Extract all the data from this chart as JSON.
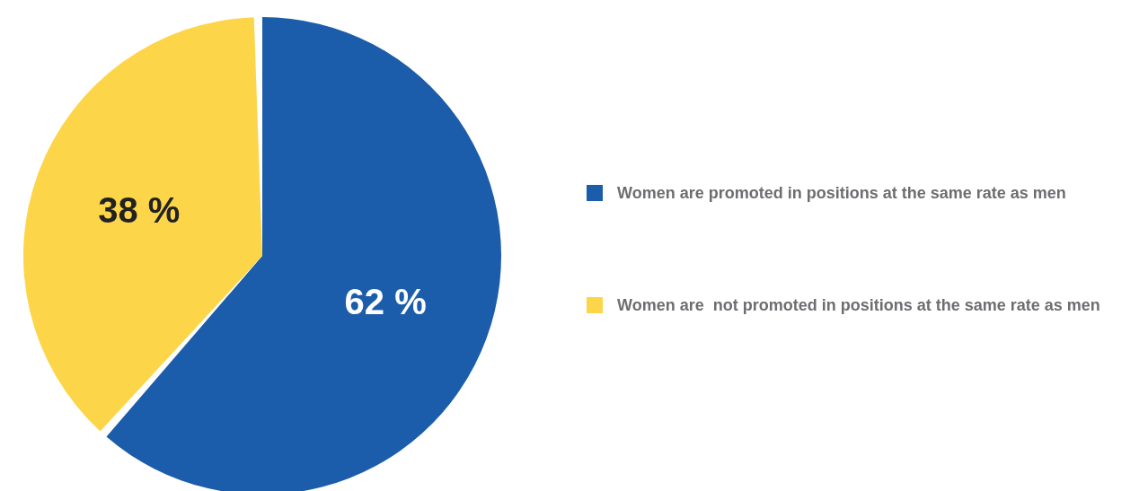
{
  "chart_data": {
    "type": "pie",
    "categories": [
      "Women are promoted in positions at the same rate as men",
      "Women are  not promoted in positions at the same rate as men"
    ],
    "values": [
      62,
      38
    ],
    "colors": [
      "#1b5daa",
      "#fdd549"
    ],
    "value_labels": [
      "62 %",
      "38 %"
    ],
    "legend": "right"
  }
}
